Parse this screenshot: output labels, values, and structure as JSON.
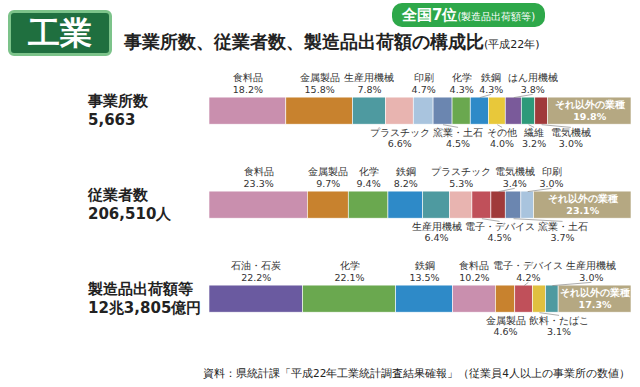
{
  "header": {
    "badge": "工業",
    "title": "事業所数、従業者数、製造品出荷額の構成比",
    "title_note": "(平成22年)",
    "rank": "全国7位",
    "rank_note": "(製造品出荷額等)"
  },
  "chart_data": [
    {
      "type": "bar",
      "orientation": "horizontal",
      "stacked": true,
      "data_labels": true,
      "tick_labels": false,
      "title": "事業所数",
      "subtitle": "5,663",
      "categories": [
        "食料品",
        "金属製品",
        "生産用機械",
        "プラスチック",
        "印刷",
        "窯業・土石",
        "化学",
        "鉄鋼",
        "その他",
        "はん用機械",
        "繊維",
        "電気機械",
        "それ以外の業種"
      ],
      "values": [
        18.2,
        15.8,
        7.8,
        6.6,
        4.7,
        4.5,
        4.3,
        4.3,
        4.0,
        3.8,
        3.2,
        3.0,
        19.8
      ],
      "value_labels": [
        "18.2%",
        "15.8%",
        "7.8%",
        "6.6%",
        "4.7%",
        "4.5%",
        "4.3%",
        "4.3%",
        "4.0%",
        "3.8%",
        "3.2%",
        "3.0%",
        "19.8%"
      ],
      "colors": [
        "#c98fae",
        "#c8822e",
        "#4e9aa0",
        "#e8b4b0",
        "#a9c4de",
        "#6b86b0",
        "#6aa84f",
        "#2e8ac8",
        "#e8c83a",
        "#7a5a9a",
        "#2e9a7a",
        "#a03a3a",
        "#b5a882"
      ],
      "xlim": [
        0,
        100
      ]
    },
    {
      "type": "bar",
      "orientation": "horizontal",
      "stacked": true,
      "data_labels": true,
      "tick_labels": false,
      "title": "従業者数",
      "subtitle": "206,510人",
      "categories": [
        "食料品",
        "金属製品",
        "化学",
        "鉄鋼",
        "生産用機械",
        "プラスチック",
        "電子・デバイス",
        "電気機械",
        "窯業・土石",
        "印刷",
        "それ以外の業種"
      ],
      "values": [
        23.3,
        9.7,
        9.4,
        8.2,
        6.4,
        5.3,
        4.5,
        3.4,
        3.7,
        3.0,
        23.1
      ],
      "value_labels": [
        "23.3%",
        "9.7%",
        "9.4%",
        "8.2%",
        "6.4%",
        "5.3%",
        "4.5%",
        "3.4%",
        "3.7%",
        "3.0%",
        "23.1%"
      ],
      "colors": [
        "#c98fae",
        "#c8822e",
        "#6aa84f",
        "#2e8ac8",
        "#4e9aa0",
        "#e8b4b0",
        "#c0505a",
        "#a03a3a",
        "#6b86b0",
        "#a9c4de",
        "#b5a882"
      ],
      "xlim": [
        0,
        100
      ]
    },
    {
      "type": "bar",
      "orientation": "horizontal",
      "stacked": true,
      "data_labels": true,
      "tick_labels": false,
      "title": "製造品出荷額等",
      "subtitle": "12兆3,805億円",
      "categories": [
        "石油・石炭",
        "化学",
        "鉄鋼",
        "食料品",
        "金属製品",
        "電子・デバイス",
        "飲料・たばこ",
        "生産用機械",
        "それ以外の業種"
      ],
      "values": [
        22.2,
        22.1,
        13.5,
        10.2,
        4.6,
        4.2,
        3.1,
        3.0,
        17.3
      ],
      "value_labels": [
        "22.2%",
        "22.1%",
        "13.5%",
        "10.2%",
        "4.6%",
        "4.2%",
        "3.1%",
        "3.0%",
        "17.3%"
      ],
      "colors": [
        "#6a5aa0",
        "#6aa84f",
        "#2e8ac8",
        "#c98fae",
        "#c8822e",
        "#c0505a",
        "#e0c040",
        "#4e9aa0",
        "#b5a882"
      ],
      "xlim": [
        0,
        100.2
      ]
    }
  ],
  "source": "資料：県統計課「平成22年工業統計調査結果確報」（従業員4人以上の事業所の数値）"
}
